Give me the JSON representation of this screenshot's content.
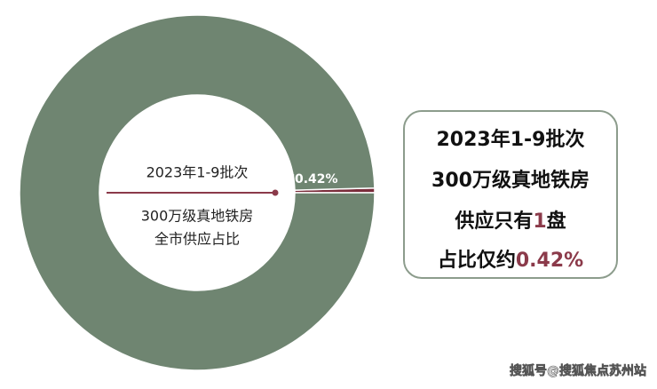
{
  "chart_data": {
    "type": "pie",
    "donut": true,
    "center_lines": [
      "2023年1-9批次",
      "300万级真地铁房",
      "全市供应占比"
    ],
    "values": [
      0.42,
      99.58
    ],
    "value_labels": [
      "约0.42%",
      null
    ],
    "colors": [
      "#7b2d3b",
      "#6f8571"
    ]
  },
  "callout": {
    "lines": [
      [
        {
          "text": "2023年1-9批次"
        }
      ],
      [
        {
          "text": "300万级真地铁房"
        }
      ],
      [
        {
          "text": "供应只有"
        },
        {
          "text": "1",
          "highlight": true
        },
        {
          "text": "盘"
        }
      ],
      [
        {
          "text": "占比仅约"
        },
        {
          "text": "0.42%",
          "highlight": true
        }
      ]
    ],
    "highlight_color": "#8b3a4a"
  },
  "watermark": "搜狐号@搜狐焦点苏州站"
}
